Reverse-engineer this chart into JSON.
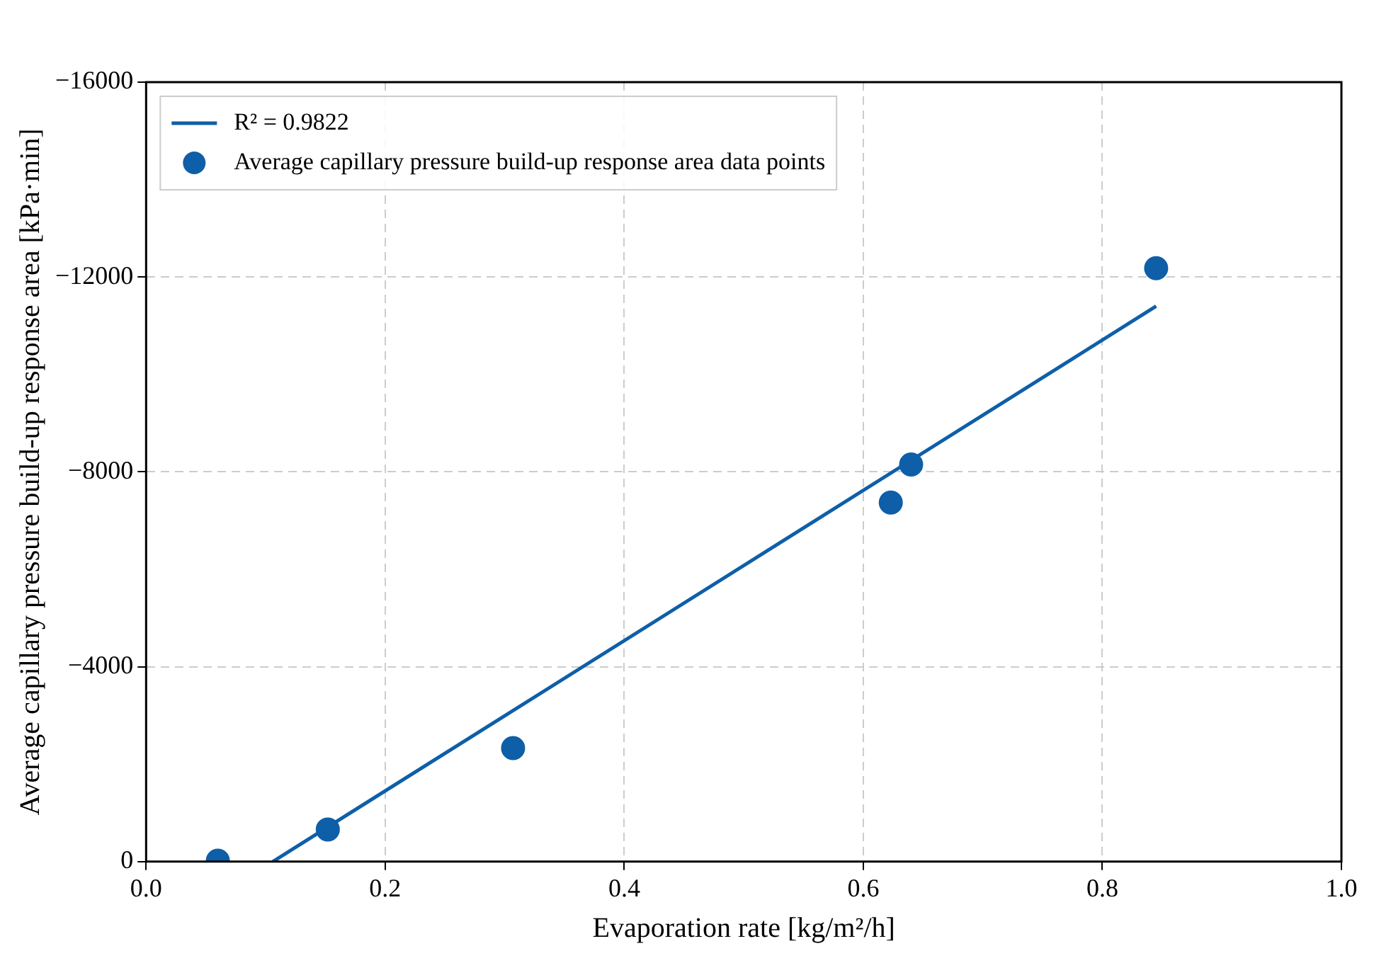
{
  "chart_data": {
    "type": "scatter",
    "xlabel": "Evaporation rate [kg/m²/h]",
    "ylabel": "Average capillary pressure build-up response area [kPa·min]",
    "xlim": [
      0,
      1
    ],
    "xticks": [
      {
        "value": 0,
        "label": "0.0"
      },
      {
        "value": 0.2,
        "label": "0.2"
      },
      {
        "value": 0.4,
        "label": "0.4"
      },
      {
        "value": 0.6,
        "label": "0.6"
      },
      {
        "value": 0.8,
        "label": "0.8"
      },
      {
        "value": 1,
        "label": "1.0"
      }
    ],
    "ylim": [
      0,
      -16000
    ],
    "yticks": [
      0,
      {
        "value": -4000,
        "label": "−4000"
      },
      {
        "value": -8000,
        "label": "−8000"
      },
      {
        "value": -12000,
        "label": "−12000"
      },
      {
        "value": -16000,
        "label": "−16000"
      }
    ],
    "grid": true,
    "legend": "top left",
    "series": [
      {
        "name": "R² = 0.9822",
        "type": "line",
        "color": "#0e5fa8",
        "marker": "none",
        "line_style": "solid",
        "x": [
          0.106,
          0.845
        ],
        "values": [
          0,
          -11400
        ]
      },
      {
        "name": "Average capillary pressure build-up response area data points",
        "type": "scatter",
        "color": "#0e5fa8",
        "marker": "circle",
        "x": [
          0.06,
          0.152,
          0.307,
          0.623,
          0.64,
          0.845
        ],
        "values": [
          -20,
          -660,
          -2330,
          -7370,
          -8150,
          -12180
        ]
      }
    ]
  }
}
